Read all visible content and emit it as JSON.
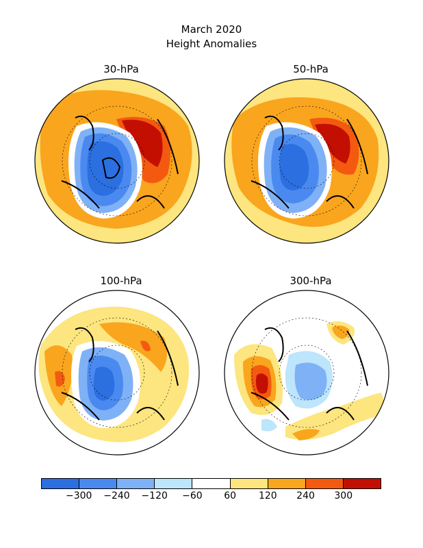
{
  "title": "March 2020",
  "subtitle": "Height Anomalies",
  "panels": [
    {
      "id": "30",
      "label": "30-hPa"
    },
    {
      "id": "50",
      "label": "50-hPa"
    },
    {
      "id": "100",
      "label": "100-hPa"
    },
    {
      "id": "300",
      "label": "300-hPa"
    }
  ],
  "colorbar": {
    "colors": [
      "#2c6fe0",
      "#4a8af0",
      "#7fb1f6",
      "#bde5fb",
      "#ffffff",
      "#fde57f",
      "#f9a51e",
      "#f35a10",
      "#c30f02"
    ],
    "labels": [
      "-300",
      "-240",
      "-120",
      "-60",
      "60",
      "120",
      "240",
      "300"
    ]
  }
}
